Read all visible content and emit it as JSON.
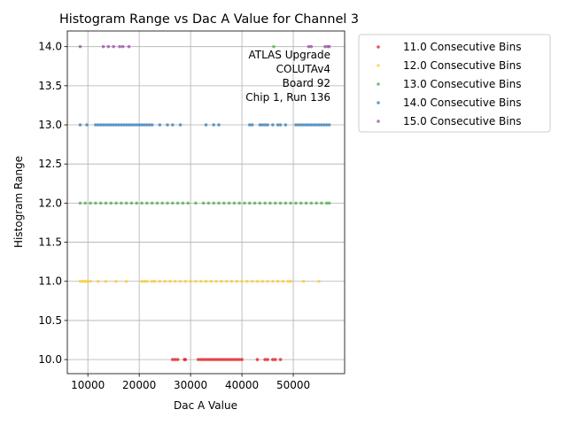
{
  "chart_data": {
    "type": "scatter",
    "title": "Histogram Range vs Dac A Value for Channel 3",
    "xlabel": "Dac A Value",
    "ylabel": "Histogram Range",
    "xlim": [
      6000,
      60000
    ],
    "ylim": [
      9.82,
      14.2
    ],
    "x_ticks": [
      10000,
      20000,
      30000,
      40000,
      50000
    ],
    "x_tick_labels": [
      "10000",
      "20000",
      "30000",
      "40000",
      "50000"
    ],
    "y_ticks": [
      10.0,
      10.5,
      11.0,
      11.5,
      12.0,
      12.5,
      13.0,
      13.5,
      14.0
    ],
    "y_tick_labels": [
      "10.0",
      "10.5",
      "11.0",
      "11.5",
      "12.0",
      "12.5",
      "13.0",
      "13.5",
      "14.0"
    ],
    "grid": true,
    "legend_position": "outside-top-right",
    "annotation": [
      "ATLAS Upgrade",
      "COLUTAv4",
      "Board 92",
      "Chip 1, Run 136"
    ],
    "series": [
      {
        "name": "11.0 Consecutive Bins",
        "color": "#e41a1c",
        "y": 10.0,
        "x": [
          26500,
          27000,
          27500,
          28800,
          29000,
          31500,
          32000,
          32500,
          33000,
          33500,
          34000,
          34500,
          35000,
          35500,
          36000,
          36500,
          37000,
          37500,
          38000,
          38500,
          39000,
          39500,
          40000,
          43000,
          44500,
          45000,
          46000,
          46500,
          47500
        ]
      },
      {
        "name": "12.0 Consecutive Bins",
        "color": "#ffcc33",
        "y": 11.0,
        "x": [
          8500,
          9000,
          9500,
          10000,
          10500,
          12000,
          13500,
          15500,
          17500,
          20500,
          21000,
          21500,
          22500,
          23000,
          24000,
          25000,
          26000,
          27000,
          28000,
          29000,
          30000,
          31000,
          32000,
          33000,
          34000,
          35000,
          36000,
          37000,
          38000,
          39000,
          40000,
          41000,
          42000,
          43000,
          44000,
          45000,
          46000,
          47000,
          48000,
          49000,
          49500,
          52000,
          55000
        ]
      },
      {
        "name": "13.0 Consecutive Bins",
        "color": "#4daf4a",
        "y": 12.0,
        "x": [
          8500,
          9500,
          10500,
          11500,
          12500,
          13500,
          14500,
          15500,
          16500,
          17500,
          18500,
          19500,
          20500,
          21500,
          22500,
          23500,
          24500,
          25500,
          26500,
          27500,
          28500,
          29500,
          31000,
          32500,
          33500,
          34500,
          35500,
          36500,
          37500,
          38500,
          39500,
          40500,
          41500,
          42500,
          43500,
          44500,
          45500,
          46500,
          47500,
          48500,
          49500,
          50500,
          51500,
          52500,
          53500,
          54500,
          55500,
          56500,
          57000
        ]
      },
      {
        "name": "13.0 Consecutive Bins",
        "color": "#4daf4a",
        "y": 14.0,
        "x": [
          46200
        ]
      },
      {
        "name": "14.0 Consecutive Bins",
        "color": "#377eb8",
        "y": 13.0,
        "x": [
          8500,
          9800,
          11500,
          12000,
          12500,
          13000,
          13500,
          14000,
          14500,
          15000,
          15500,
          16000,
          16500,
          17000,
          17500,
          18000,
          18500,
          19000,
          19500,
          20000,
          20500,
          21000,
          21500,
          22000,
          22500,
          24000,
          25500,
          26500,
          28000,
          33000,
          34500,
          35500,
          41500,
          42000,
          43500,
          44000,
          44500,
          45000,
          46000,
          47000,
          47500,
          48500,
          50500,
          51000,
          51500,
          52000,
          52500,
          53000,
          53500,
          54000,
          54500,
          55000,
          55500,
          56000,
          56500,
          57000
        ]
      },
      {
        "name": "15.0 Consecutive Bins",
        "color": "#984ea3",
        "y": 14.0,
        "x": [
          8500,
          13000,
          14000,
          15000,
          16200,
          16800,
          18000,
          53000,
          53500,
          56200,
          56700,
          57000
        ]
      }
    ],
    "legend": [
      {
        "label": "11.0 Consecutive Bins",
        "color": "#e41a1c"
      },
      {
        "label": "12.0 Consecutive Bins",
        "color": "#ffcc33"
      },
      {
        "label": "13.0 Consecutive Bins",
        "color": "#4daf4a"
      },
      {
        "label": "14.0 Consecutive Bins",
        "color": "#377eb8"
      },
      {
        "label": "15.0 Consecutive Bins",
        "color": "#984ea3"
      }
    ]
  }
}
